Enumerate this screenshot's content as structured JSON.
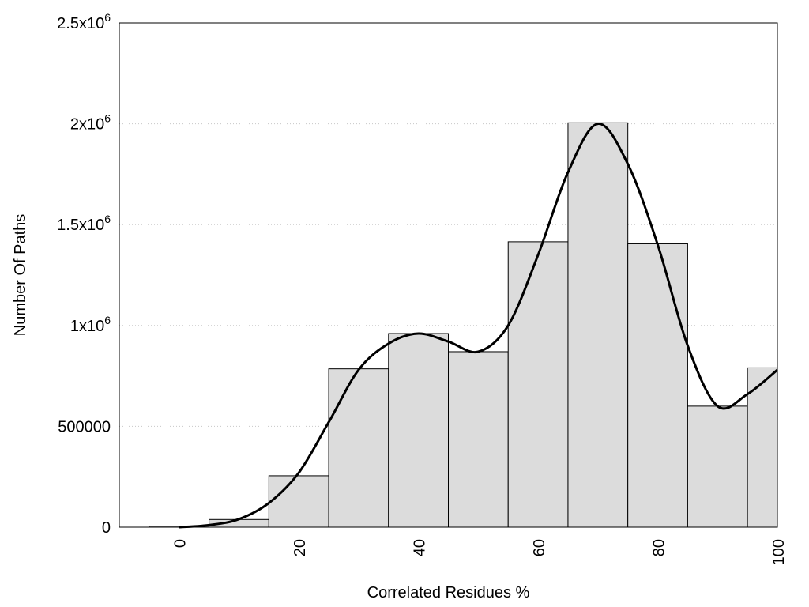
{
  "chart_data": {
    "type": "bar",
    "xlabel": "Correlated Residues %",
    "ylabel": "Number Of Paths",
    "xlim": [
      -10,
      100
    ],
    "ylim": [
      0,
      2500000
    ],
    "x_ticks": [
      "0",
      "20",
      "40",
      "60",
      "80",
      "100"
    ],
    "y_ticks": [
      {
        "base": "0",
        "exp": ""
      },
      {
        "base": "500000",
        "exp": ""
      },
      {
        "base": "1x10",
        "exp": "6"
      },
      {
        "base": "1.5x10",
        "exp": "6"
      },
      {
        "base": "2x10",
        "exp": "6"
      },
      {
        "base": "2.5x10",
        "exp": "6"
      }
    ],
    "grid": "horizontal dotted",
    "bar_fill": "#dcdcdc",
    "bar_stroke": "#000000",
    "bins": [
      {
        "x0": -5,
        "x1": 5,
        "value": 5000
      },
      {
        "x0": 5,
        "x1": 15,
        "value": 38000
      },
      {
        "x0": 15,
        "x1": 25,
        "value": 255000
      },
      {
        "x0": 25,
        "x1": 35,
        "value": 785000
      },
      {
        "x0": 35,
        "x1": 45,
        "value": 960000
      },
      {
        "x0": 45,
        "x1": 55,
        "value": 870000
      },
      {
        "x0": 55,
        "x1": 65,
        "value": 1415000
      },
      {
        "x0": 65,
        "x1": 75,
        "value": 2005000
      },
      {
        "x0": 75,
        "x1": 85,
        "value": 1405000
      },
      {
        "x0": 85,
        "x1": 95,
        "value": 600000
      },
      {
        "x0": 95,
        "x1": 100,
        "value": 790000
      }
    ],
    "curve": {
      "color": "#000000",
      "x": [
        0,
        5,
        10,
        15,
        20,
        25,
        30,
        35,
        40,
        45,
        50,
        55,
        60,
        65,
        70,
        75,
        80,
        85,
        90,
        95,
        100
      ],
      "y": [
        0,
        10000,
        40000,
        120000,
        270000,
        520000,
        780000,
        910000,
        960000,
        920000,
        870000,
        1000000,
        1350000,
        1760000,
        2000000,
        1800000,
        1400000,
        900000,
        600000,
        660000,
        780000
      ]
    }
  }
}
